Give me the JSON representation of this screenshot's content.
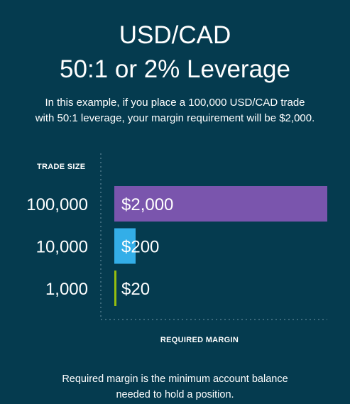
{
  "title_line1": "USD/CAD",
  "title_line2": "50:1 or 2% Leverage",
  "subtitle_line1": "In this example, if you place a 100,000 USD/CAD trade",
  "subtitle_line2": "with 50:1 leverage, your margin requirement will be $2,000.",
  "footnote_line1": "Required margin is the minimum account balance",
  "footnote_line2": "needed to hold a position.",
  "colors": {
    "background": "#053b4f",
    "bar_100000": "#7a55ad",
    "bar_10000": "#33aee8",
    "bar_1000": "#95be0f",
    "guide": "#5f8797"
  },
  "chart_data": {
    "type": "bar",
    "orientation": "horizontal",
    "ylabel": "TRADE SIZE",
    "xlabel": "REQUIRED MARGIN",
    "categories": [
      "100,000",
      "10,000",
      "1,000"
    ],
    "values": [
      2000,
      200,
      20
    ],
    "value_labels": [
      "$2,000",
      "$200",
      "$20"
    ],
    "xlim": [
      0,
      2000
    ],
    "grid": false,
    "legend": "none"
  }
}
